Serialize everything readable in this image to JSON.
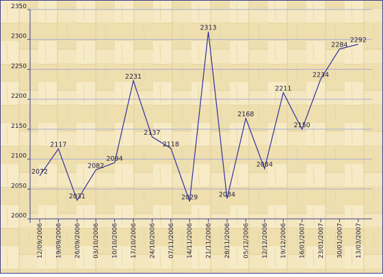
{
  "colors": {
    "background": "#f1e3b5",
    "plank_light": "#f6ebc6",
    "plank_dark": "#e7d3a0",
    "gridline": "#a9a8d6",
    "line": "#2e2e9c",
    "axis": "#3c3c8c",
    "frame": "#3c3c8c"
  },
  "chart_data": {
    "type": "line",
    "title": "",
    "xlabel": "",
    "ylabel": "",
    "ylim": [
      2000,
      2350
    ],
    "yticks": [
      2000,
      2050,
      2100,
      2150,
      2200,
      2250,
      2300,
      2350
    ],
    "grid": "horizontal",
    "categories": [
      "12/09/2006",
      "19/09/2006",
      "26/09/2006",
      "03/10/2006",
      "10/10/2006",
      "17/10/2006",
      "24/10/2006",
      "07/11/2006",
      "14/11/2006",
      "21/11/2006",
      "28/11/2006",
      "05/12/2006",
      "12/12/2006",
      "19/12/2006",
      "16/01/2007",
      "23/01/2007",
      "30/01/2007",
      "13/03/2007"
    ],
    "series": [
      {
        "values": [
          2072,
          2117,
          2031,
          2082,
          2094,
          2231,
          2137,
          2118,
          2029,
          2313,
          2034,
          2168,
          2084,
          2211,
          2150,
          2234,
          2284,
          2292
        ]
      }
    ]
  }
}
